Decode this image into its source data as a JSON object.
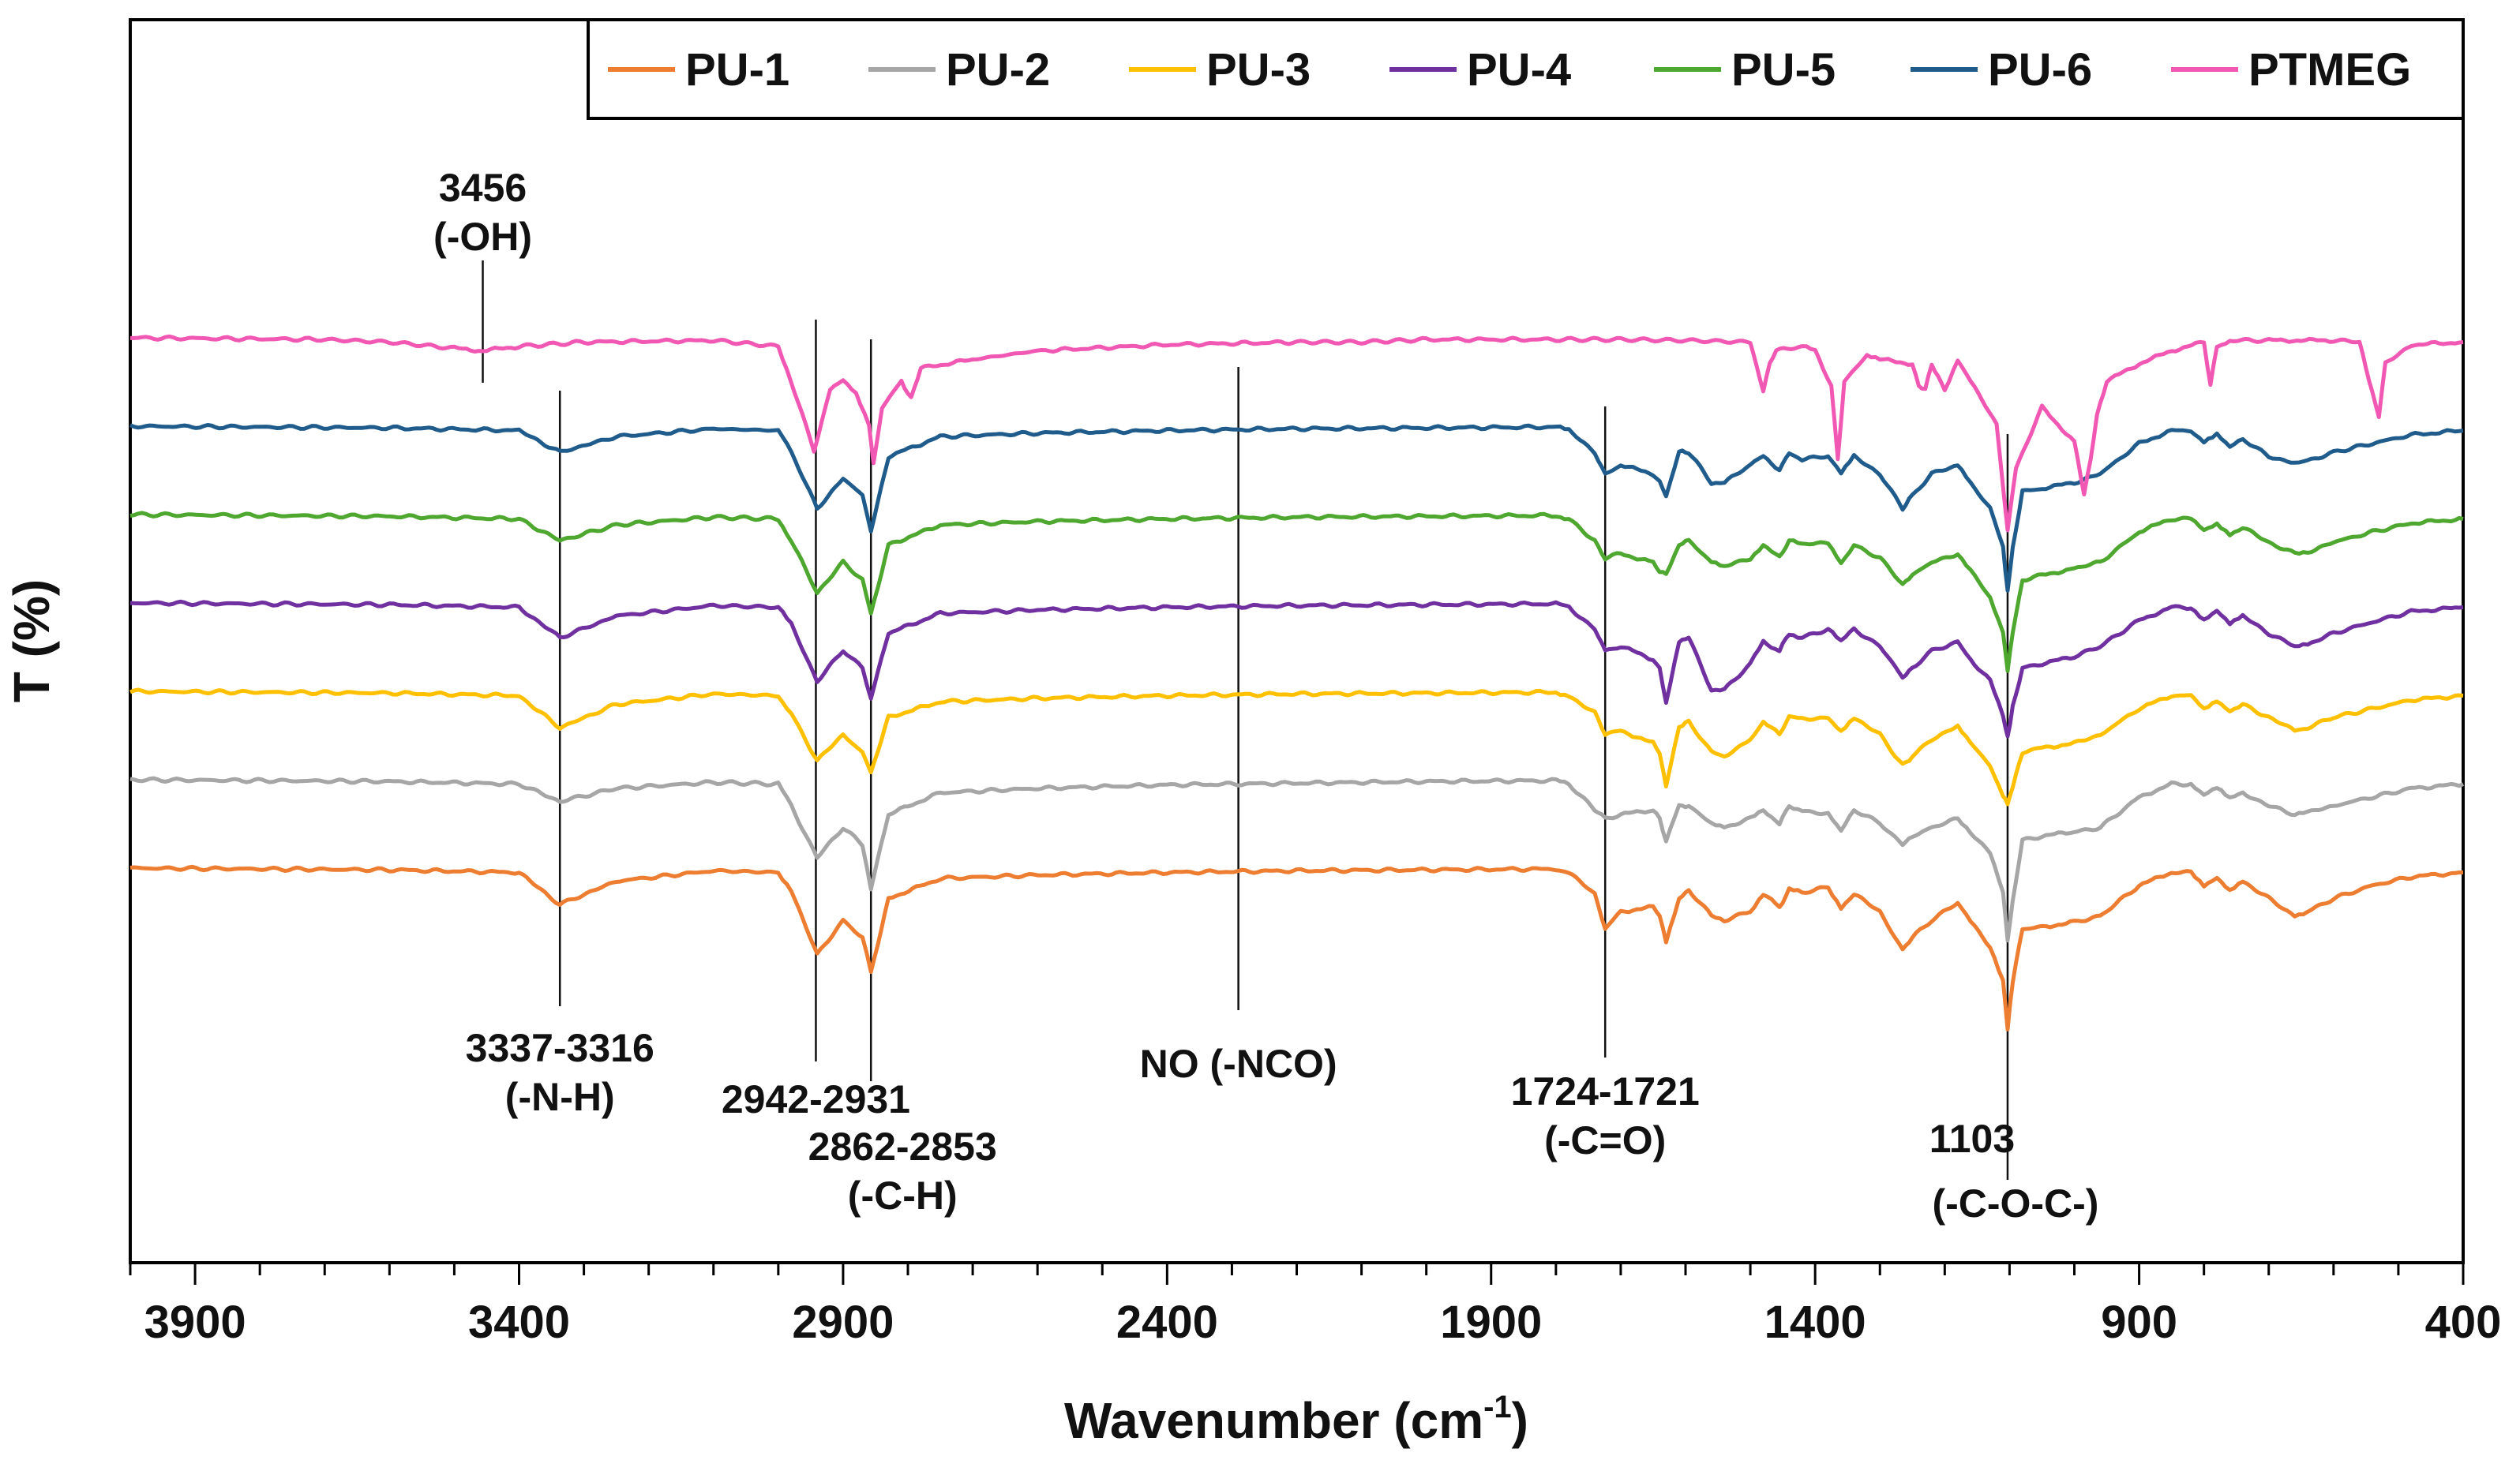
{
  "chart_data": {
    "type": "line",
    "title": "",
    "xlabel": "Wavenumber (cm",
    "xlabel_sup": "-1",
    "xlabel_end": ")",
    "ylabel": "T (%)",
    "xlim": [
      4000,
      400
    ],
    "x_reversed": true,
    "x_ticks": [
      3900,
      3400,
      2900,
      2400,
      1900,
      1400,
      900,
      400
    ],
    "y_offset_step": 1,
    "series": [
      {
        "name": "PU-1",
        "color": "#ED7D31",
        "offset": 0,
        "x": [
          4000,
          3600,
          3400,
          3337,
          3250,
          3100,
          3000,
          2980,
          2940,
          2900,
          2870,
          2857,
          2830,
          2750,
          2600,
          2400,
          2200,
          2000,
          1800,
          1780,
          1740,
          1724,
          1700,
          1650,
          1640,
          1630,
          1610,
          1595,
          1560,
          1540,
          1500,
          1480,
          1455,
          1440,
          1420,
          1380,
          1360,
          1340,
          1300,
          1265,
          1250,
          1220,
          1180,
          1160,
          1130,
          1110,
          1103,
          1095,
          1080,
          1050,
          1000,
          960,
          900,
          850,
          820,
          800,
          780,
          760,
          740,
          700,
          660,
          640,
          600,
          540,
          480,
          400
        ],
        "y": [
          0,
          -0.02,
          -0.05,
          -0.42,
          -0.15,
          -0.03,
          -0.05,
          -0.25,
          -1.0,
          -0.6,
          -0.8,
          -1.2,
          -0.35,
          -0.12,
          -0.08,
          -0.05,
          -0.03,
          -0.02,
          -0.01,
          -0.05,
          -0.3,
          -0.7,
          -0.5,
          -0.45,
          -0.55,
          -0.85,
          -0.35,
          -0.25,
          -0.55,
          -0.6,
          -0.5,
          -0.3,
          -0.45,
          -0.25,
          -0.28,
          -0.22,
          -0.45,
          -0.3,
          -0.5,
          -0.95,
          -0.8,
          -0.6,
          -0.4,
          -0.62,
          -0.9,
          -1.3,
          -1.85,
          -1.3,
          -0.7,
          -0.68,
          -0.62,
          -0.55,
          -0.2,
          -0.05,
          -0.05,
          -0.2,
          -0.1,
          -0.25,
          -0.15,
          -0.35,
          -0.55,
          -0.5,
          -0.35,
          -0.2,
          -0.1,
          -0.05
        ]
      },
      {
        "name": "PU-2",
        "color": "#A6A6A6",
        "offset": 1,
        "x": [
          4000,
          3600,
          3400,
          3337,
          3250,
          3100,
          3000,
          2980,
          2940,
          2900,
          2870,
          2857,
          2830,
          2750,
          2600,
          2400,
          2200,
          2000,
          1800,
          1780,
          1740,
          1724,
          1700,
          1650,
          1640,
          1630,
          1610,
          1595,
          1560,
          1540,
          1500,
          1480,
          1455,
          1440,
          1420,
          1380,
          1360,
          1340,
          1300,
          1265,
          1250,
          1220,
          1180,
          1160,
          1130,
          1110,
          1103,
          1095,
          1080,
          1050,
          1000,
          960,
          900,
          850,
          820,
          800,
          780,
          760,
          740,
          700,
          660,
          640,
          600,
          540,
          480,
          400
        ],
        "y": [
          0,
          -0.02,
          -0.05,
          -0.25,
          -0.1,
          -0.03,
          -0.05,
          -0.3,
          -0.9,
          -0.55,
          -0.75,
          -1.25,
          -0.4,
          -0.15,
          -0.1,
          -0.06,
          -0.04,
          -0.02,
          -0.01,
          -0.05,
          -0.35,
          -0.45,
          -0.4,
          -0.35,
          -0.45,
          -0.7,
          -0.3,
          -0.3,
          -0.5,
          -0.55,
          -0.45,
          -0.35,
          -0.5,
          -0.3,
          -0.35,
          -0.4,
          -0.6,
          -0.35,
          -0.5,
          -0.75,
          -0.65,
          -0.55,
          -0.45,
          -0.6,
          -0.85,
          -1.3,
          -1.85,
          -1.4,
          -0.7,
          -0.65,
          -0.6,
          -0.55,
          -0.2,
          -0.05,
          -0.05,
          -0.18,
          -0.1,
          -0.22,
          -0.15,
          -0.3,
          -0.4,
          -0.38,
          -0.3,
          -0.2,
          -0.1,
          -0.05
        ]
      },
      {
        "name": "PU-3",
        "color": "#FFC000",
        "offset": 2,
        "x": [
          4000,
          3600,
          3400,
          3337,
          3250,
          3100,
          3000,
          2980,
          2940,
          2900,
          2870,
          2857,
          2830,
          2750,
          2600,
          2400,
          2200,
          2000,
          1800,
          1780,
          1740,
          1724,
          1700,
          1650,
          1640,
          1630,
          1610,
          1595,
          1560,
          1540,
          1500,
          1480,
          1455,
          1440,
          1420,
          1380,
          1360,
          1340,
          1300,
          1265,
          1250,
          1220,
          1180,
          1160,
          1130,
          1110,
          1103,
          1095,
          1080,
          1050,
          1000,
          960,
          900,
          850,
          820,
          800,
          780,
          760,
          740,
          700,
          660,
          640,
          600,
          540,
          480,
          400
        ],
        "y": [
          0,
          -0.02,
          -0.05,
          -0.42,
          -0.15,
          -0.03,
          -0.05,
          -0.25,
          -0.8,
          -0.5,
          -0.7,
          -0.95,
          -0.3,
          -0.12,
          -0.08,
          -0.05,
          -0.03,
          -0.02,
          -0.01,
          -0.05,
          -0.25,
          -0.5,
          -0.45,
          -0.6,
          -0.7,
          -1.1,
          -0.4,
          -0.35,
          -0.7,
          -0.75,
          -0.55,
          -0.35,
          -0.5,
          -0.3,
          -0.32,
          -0.3,
          -0.45,
          -0.3,
          -0.5,
          -0.85,
          -0.75,
          -0.55,
          -0.4,
          -0.6,
          -0.85,
          -1.2,
          -1.3,
          -1.1,
          -0.7,
          -0.65,
          -0.6,
          -0.5,
          -0.2,
          -0.05,
          -0.05,
          -0.2,
          -0.1,
          -0.22,
          -0.15,
          -0.3,
          -0.45,
          -0.42,
          -0.3,
          -0.2,
          -0.1,
          -0.05
        ]
      },
      {
        "name": "PU-4",
        "color": "#7030A0",
        "offset": 3,
        "x": [
          4000,
          3600,
          3400,
          3337,
          3250,
          3100,
          3000,
          2980,
          2940,
          2900,
          2870,
          2857,
          2830,
          2750,
          2600,
          2400,
          2200,
          2000,
          1800,
          1780,
          1740,
          1724,
          1700,
          1650,
          1640,
          1630,
          1610,
          1595,
          1560,
          1540,
          1500,
          1480,
          1455,
          1440,
          1420,
          1380,
          1360,
          1340,
          1300,
          1265,
          1250,
          1220,
          1180,
          1160,
          1130,
          1110,
          1103,
          1095,
          1080,
          1050,
          1000,
          960,
          900,
          850,
          820,
          800,
          780,
          760,
          740,
          700,
          660,
          640,
          600,
          540,
          480,
          400
        ],
        "y": [
          0,
          -0.02,
          -0.05,
          -0.4,
          -0.15,
          -0.03,
          -0.05,
          -0.25,
          -0.9,
          -0.55,
          -0.75,
          -1.1,
          -0.35,
          -0.12,
          -0.08,
          -0.05,
          -0.03,
          -0.02,
          -0.01,
          -0.05,
          -0.3,
          -0.55,
          -0.5,
          -0.65,
          -0.75,
          -1.15,
          -0.45,
          -0.4,
          -1.0,
          -1.0,
          -0.7,
          -0.45,
          -0.55,
          -0.35,
          -0.4,
          -0.3,
          -0.45,
          -0.3,
          -0.5,
          -0.85,
          -0.75,
          -0.55,
          -0.45,
          -0.65,
          -0.9,
          -1.3,
          -1.55,
          -1.2,
          -0.75,
          -0.7,
          -0.62,
          -0.5,
          -0.2,
          -0.05,
          -0.05,
          -0.2,
          -0.1,
          -0.25,
          -0.15,
          -0.35,
          -0.5,
          -0.48,
          -0.35,
          -0.22,
          -0.1,
          -0.05
        ]
      },
      {
        "name": "PU-5",
        "color": "#4EA72E",
        "offset": 4,
        "x": [
          4000,
          3600,
          3400,
          3337,
          3250,
          3100,
          3000,
          2980,
          2940,
          2900,
          2870,
          2857,
          2830,
          2750,
          2600,
          2400,
          2200,
          2000,
          1800,
          1780,
          1740,
          1724,
          1700,
          1650,
          1640,
          1630,
          1610,
          1595,
          1560,
          1540,
          1500,
          1480,
          1455,
          1440,
          1420,
          1380,
          1360,
          1340,
          1300,
          1265,
          1250,
          1220,
          1180,
          1160,
          1130,
          1110,
          1103,
          1095,
          1080,
          1050,
          1000,
          960,
          900,
          850,
          820,
          800,
          780,
          760,
          740,
          700,
          660,
          640,
          600,
          540,
          480,
          400
        ],
        "y": [
          0,
          -0.02,
          -0.05,
          -0.3,
          -0.12,
          -0.03,
          -0.05,
          -0.3,
          -0.9,
          -0.55,
          -0.75,
          -1.15,
          -0.35,
          -0.12,
          -0.08,
          -0.05,
          -0.03,
          -0.02,
          -0.01,
          -0.05,
          -0.3,
          -0.5,
          -0.45,
          -0.55,
          -0.65,
          -0.7,
          -0.35,
          -0.3,
          -0.55,
          -0.6,
          -0.5,
          -0.35,
          -0.5,
          -0.3,
          -0.35,
          -0.32,
          -0.55,
          -0.35,
          -0.5,
          -0.8,
          -0.7,
          -0.55,
          -0.45,
          -0.65,
          -0.95,
          -1.35,
          -1.8,
          -1.35,
          -0.75,
          -0.7,
          -0.62,
          -0.55,
          -0.2,
          -0.05,
          -0.05,
          -0.18,
          -0.1,
          -0.22,
          -0.15,
          -0.32,
          -0.45,
          -0.43,
          -0.32,
          -0.2,
          -0.1,
          -0.05
        ]
      },
      {
        "name": "PU-6",
        "color": "#1F5C8B",
        "offset": 5,
        "x": [
          4000,
          3600,
          3400,
          3337,
          3250,
          3100,
          3000,
          2980,
          2940,
          2900,
          2870,
          2857,
          2830,
          2750,
          2600,
          2400,
          2200,
          2000,
          1800,
          1780,
          1740,
          1724,
          1700,
          1650,
          1640,
          1630,
          1610,
          1595,
          1560,
          1540,
          1500,
          1480,
          1455,
          1440,
          1420,
          1380,
          1360,
          1340,
          1300,
          1265,
          1250,
          1220,
          1180,
          1160,
          1130,
          1110,
          1103,
          1095,
          1080,
          1050,
          1000,
          960,
          900,
          850,
          820,
          800,
          780,
          760,
          740,
          700,
          660,
          640,
          600,
          540,
          480,
          400
        ],
        "y": [
          0,
          -0.02,
          -0.05,
          -0.3,
          -0.12,
          -0.03,
          -0.05,
          -0.3,
          -0.95,
          -0.6,
          -0.8,
          -1.2,
          -0.35,
          -0.12,
          -0.08,
          -0.05,
          -0.03,
          -0.02,
          -0.01,
          -0.05,
          -0.3,
          -0.55,
          -0.45,
          -0.55,
          -0.65,
          -0.8,
          -0.3,
          -0.3,
          -0.65,
          -0.65,
          -0.45,
          -0.35,
          -0.5,
          -0.3,
          -0.38,
          -0.35,
          -0.55,
          -0.35,
          -0.55,
          -0.95,
          -0.8,
          -0.55,
          -0.45,
          -0.65,
          -0.95,
          -1.4,
          -1.9,
          -1.4,
          -0.75,
          -0.72,
          -0.65,
          -0.55,
          -0.2,
          -0.05,
          -0.05,
          -0.18,
          -0.1,
          -0.25,
          -0.15,
          -0.35,
          -0.42,
          -0.4,
          -0.3,
          -0.2,
          -0.1,
          -0.05
        ]
      },
      {
        "name": "PTMEG",
        "color": "#F058B4",
        "offset": 6,
        "x": [
          4000,
          3700,
          3600,
          3500,
          3456,
          3400,
          3300,
          3100,
          3000,
          2980,
          2945,
          2920,
          2900,
          2880,
          2860,
          2853,
          2840,
          2810,
          2795,
          2780,
          2700,
          2600,
          2400,
          2200,
          2100,
          2000,
          1800,
          1700,
          1600,
          1500,
          1490,
          1480,
          1470,
          1460,
          1420,
          1400,
          1375,
          1365,
          1355,
          1320,
          1300,
          1250,
          1240,
          1230,
          1220,
          1210,
          1200,
          1180,
          1160,
          1120,
          1103,
          1090,
          1050,
          1000,
          985,
          975,
          965,
          950,
          900,
          850,
          800,
          790,
          780,
          760,
          700,
          650,
          600,
          560,
          545,
          530,
          520,
          480,
          400
        ],
        "y": [
          0,
          -0.02,
          -0.05,
          -0.12,
          -0.15,
          -0.1,
          -0.05,
          -0.03,
          -0.1,
          -0.5,
          -1.3,
          -0.6,
          -0.5,
          -0.65,
          -1.0,
          -1.45,
          -0.8,
          -0.5,
          -0.7,
          -0.35,
          -0.25,
          -0.15,
          -0.08,
          -0.05,
          -0.05,
          -0.02,
          -0.02,
          -0.02,
          -0.03,
          -0.05,
          -0.35,
          -0.6,
          -0.3,
          -0.15,
          -0.1,
          -0.15,
          -0.55,
          -1.4,
          -0.5,
          -0.2,
          -0.25,
          -0.3,
          -0.55,
          -0.6,
          -0.3,
          -0.45,
          -0.6,
          -0.25,
          -0.5,
          -1.0,
          -2.2,
          -1.5,
          -0.8,
          -1.2,
          -1.8,
          -1.4,
          -0.9,
          -0.5,
          -0.3,
          -0.15,
          -0.05,
          -0.55,
          -0.1,
          -0.03,
          -0.03,
          -0.03,
          -0.03,
          -0.05,
          -0.5,
          -0.9,
          -0.3,
          -0.08,
          -0.05
        ]
      }
    ],
    "annotations": [
      {
        "name": "oh-peak",
        "x": 3456,
        "lines": [
          "3456",
          "(-OH)"
        ]
      },
      {
        "name": "nh-peak",
        "x": 3337,
        "lines": [
          "3337-3316",
          "(-N-H)"
        ]
      },
      {
        "name": "ch-peak-1",
        "x": 2942,
        "lines": [
          "2942-2931"
        ]
      },
      {
        "name": "ch-peak-2",
        "x": 2857,
        "lines": [
          "2862-2853",
          "(-C-H)"
        ]
      },
      {
        "name": "nco-peak",
        "x": 2290,
        "lines": [
          "NO (-NCO)"
        ]
      },
      {
        "name": "co-peak",
        "x": 1724,
        "lines": [
          "1724-1721",
          "(-C=O)"
        ]
      },
      {
        "name": "coc-peak",
        "x": 1103,
        "lines": [
          "1103",
          "(-C-O-C-)"
        ]
      }
    ],
    "legend_position": "top-right"
  }
}
